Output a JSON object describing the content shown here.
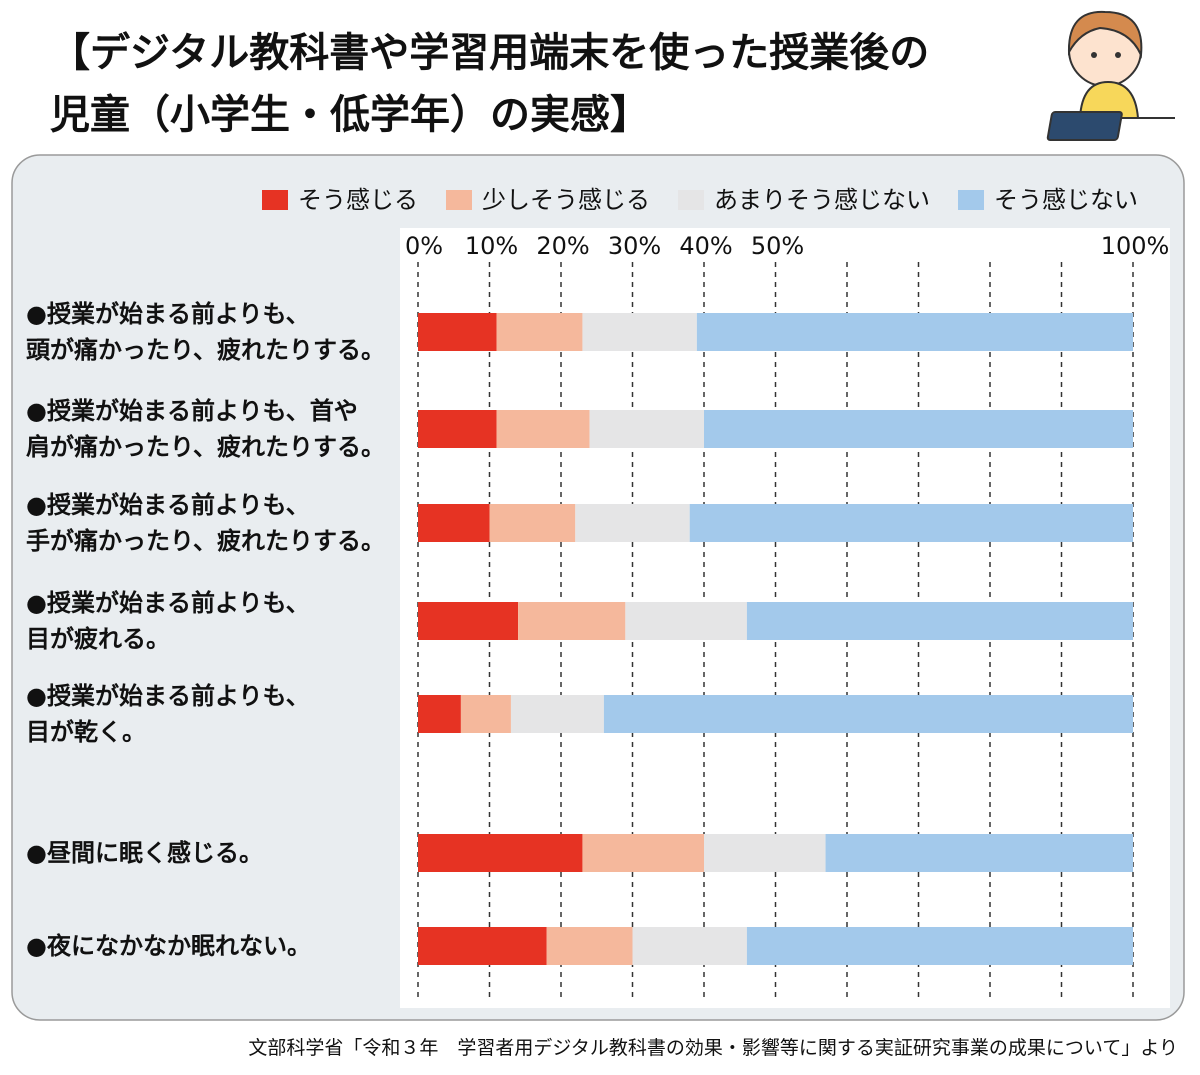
{
  "chart_data": {
    "type": "stacked_bar_horizontal",
    "title": "【デジタル教科書や学習用端末を使った授業後の\n児童（小学生・低学年）の実感】",
    "source": "文部科学省「令和３年　学習者用デジタル教科書の効果・影響等に関する実証研究事業の成果について」より",
    "categories": [
      "●授業が始まる前よりも、\n頭が痛かったり、疲れたりする。",
      "●授業が始まる前よりも、首や\n肩が痛かったり、疲れたりする。",
      "●授業が始まる前よりも、\n手が痛かったり、疲れたりする。",
      "●授業が始まる前よりも、\n目が疲れる。",
      "●授業が始まる前よりも、\n目が乾く。",
      "●昼間に眠く感じる。",
      "●夜になかなか眠れない。"
    ],
    "series": [
      {
        "name": "そう感じる",
        "color": "#e63323",
        "values": [
          11,
          11,
          10,
          14,
          6,
          23,
          18
        ]
      },
      {
        "name": "少しそう感じる",
        "color": "#f5b89c",
        "values": [
          12,
          13,
          12,
          15,
          7,
          17,
          12
        ]
      },
      {
        "name": "あまりそう感じない",
        "color": "#e5e5e6",
        "values": [
          16,
          16,
          16,
          17,
          13,
          17,
          16
        ]
      },
      {
        "name": "そう感じない",
        "color": "#a3c9eb",
        "values": [
          61,
          60,
          62,
          54,
          74,
          43,
          54
        ]
      }
    ],
    "xlim": [
      0,
      100
    ],
    "xticks": [
      {
        "value": 0,
        "label": "0%"
      },
      {
        "value": 10,
        "label": "10%"
      },
      {
        "value": 20,
        "label": "20%"
      },
      {
        "value": 30,
        "label": "30%"
      },
      {
        "value": 40,
        "label": "40%"
      },
      {
        "value": 50,
        "label": "50%"
      },
      {
        "value": 60,
        "label": null
      },
      {
        "value": 70,
        "label": null
      },
      {
        "value": 80,
        "label": null
      },
      {
        "value": 90,
        "label": null
      },
      {
        "value": 100,
        "label": "100%"
      }
    ],
    "grid": true,
    "legend": "top"
  }
}
